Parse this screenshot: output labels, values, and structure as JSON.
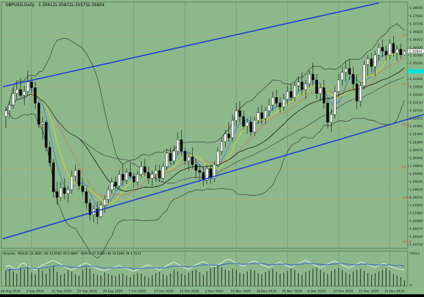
{
  "header": {
    "symbol_label": "GBPUSD,Daily",
    "ohlc": [
      "1.35612",
      "1.35872",
      "1.35575",
      "1.35804"
    ]
  },
  "colors": {
    "background": "#8cb88c",
    "bull_candle": "#ffffff",
    "bear_candle": "#000000",
    "channel_line": "#1a3ad6",
    "fib_line": "#d8a050",
    "bollinger": "#333333",
    "ma_blue": "#3a74d8",
    "ma_yellow": "#e6e600",
    "ma_red": "#e06040",
    "ma_black": "#111111",
    "last_price_marker": "#ffffff",
    "cyan_marker": "#00e5e5",
    "volume_bar": "#111111",
    "admi_white": "#ffffff",
    "admi_blue": "#2a5ad8"
  },
  "chart_data": [
    {
      "type": "candlestick",
      "title": "",
      "x_tick_labels": [
        "26 Aug 2020",
        "3 Sep 2020",
        "11 Sep 2020",
        "21 Sep 2020",
        "29 Sep 2020",
        "7 Oct 2020",
        "15 Oct 2020",
        "23 Oct 2020",
        "2 Nov 2020",
        "10 Nov 2020",
        "18 Nov 2020",
        "26 Nov 2020",
        "4 Dec 2020",
        "14 Dec 2020",
        "22 Dec 2020",
        "31 Dec 2020"
      ],
      "y_tick_labels": [
        "1.38050",
        "1.37640",
        "1.37230",
        "1.36820",
        "1.36410",
        "1.36000",
        "1.35590",
        "1.35180",
        "1.34770",
        "1.34360",
        "1.33950",
        "1.33540",
        "1.33130",
        "1.32720",
        "1.32310",
        "1.31900",
        "1.31490",
        "1.31080",
        "1.30670",
        "1.30260",
        "1.29850",
        "1.29440",
        "1.29030",
        "1.28620",
        "1.28210",
        "1.27800",
        "1.27390",
        "1.26980",
        "1.26570",
        "1.26160",
        "1.25750"
      ],
      "ylim": [
        1.2555,
        1.3835
      ],
      "last_price": "1.35804",
      "fib_levels": [
        {
          "label": "0.0",
          "value": 1.3655
        },
        {
          "label": "23.6",
          "value": 1.34
        },
        {
          "label": "38.2",
          "value": 1.319
        },
        {
          "label": "61.8",
          "value": 1.297
        },
        {
          "label": "100.0",
          "value": 1.281
        },
        {
          "label": "161.8",
          "value": 1.258
        }
      ],
      "channel_upper": [
        [
          0,
          1.3395
        ],
        [
          102,
          1.383
        ]
      ],
      "channel_lower": [
        [
          0,
          1.2605
        ],
        [
          116,
          1.326
        ]
      ],
      "candles": [
        {
          "o": 1.324,
          "h": 1.329,
          "l": 1.318,
          "c": 1.327
        },
        {
          "o": 1.327,
          "h": 1.332,
          "l": 1.323,
          "c": 1.33
        },
        {
          "o": 1.33,
          "h": 1.339,
          "l": 1.328,
          "c": 1.336
        },
        {
          "o": 1.336,
          "h": 1.342,
          "l": 1.333,
          "c": 1.338
        },
        {
          "o": 1.338,
          "h": 1.344,
          "l": 1.334,
          "c": 1.335
        },
        {
          "o": 1.335,
          "h": 1.34,
          "l": 1.33,
          "c": 1.337
        },
        {
          "o": 1.337,
          "h": 1.348,
          "l": 1.335,
          "c": 1.342
        },
        {
          "o": 1.342,
          "h": 1.345,
          "l": 1.336,
          "c": 1.339
        },
        {
          "o": 1.339,
          "h": 1.342,
          "l": 1.328,
          "c": 1.331
        },
        {
          "o": 1.331,
          "h": 1.332,
          "l": 1.318,
          "c": 1.32
        },
        {
          "o": 1.32,
          "h": 1.324,
          "l": 1.312,
          "c": 1.321
        },
        {
          "o": 1.321,
          "h": 1.322,
          "l": 1.306,
          "c": 1.308
        },
        {
          "o": 1.308,
          "h": 1.311,
          "l": 1.298,
          "c": 1.3
        },
        {
          "o": 1.3,
          "h": 1.302,
          "l": 1.282,
          "c": 1.285
        },
        {
          "o": 1.285,
          "h": 1.29,
          "l": 1.278,
          "c": 1.282
        },
        {
          "o": 1.282,
          "h": 1.29,
          "l": 1.28,
          "c": 1.287
        },
        {
          "o": 1.287,
          "h": 1.292,
          "l": 1.281,
          "c": 1.284
        },
        {
          "o": 1.284,
          "h": 1.288,
          "l": 1.279,
          "c": 1.286
        },
        {
          "o": 1.286,
          "h": 1.296,
          "l": 1.284,
          "c": 1.293
        },
        {
          "o": 1.293,
          "h": 1.299,
          "l": 1.29,
          "c": 1.296
        },
        {
          "o": 1.296,
          "h": 1.297,
          "l": 1.286,
          "c": 1.288
        },
        {
          "o": 1.288,
          "h": 1.292,
          "l": 1.283,
          "c": 1.285
        },
        {
          "o": 1.285,
          "h": 1.287,
          "l": 1.276,
          "c": 1.279
        },
        {
          "o": 1.279,
          "h": 1.281,
          "l": 1.27,
          "c": 1.273
        },
        {
          "o": 1.273,
          "h": 1.278,
          "l": 1.269,
          "c": 1.276
        },
        {
          "o": 1.276,
          "h": 1.28,
          "l": 1.268,
          "c": 1.272
        },
        {
          "o": 1.272,
          "h": 1.28,
          "l": 1.271,
          "c": 1.278
        },
        {
          "o": 1.278,
          "h": 1.283,
          "l": 1.274,
          "c": 1.281
        },
        {
          "o": 1.281,
          "h": 1.288,
          "l": 1.279,
          "c": 1.286
        },
        {
          "o": 1.286,
          "h": 1.292,
          "l": 1.284,
          "c": 1.29
        },
        {
          "o": 1.29,
          "h": 1.293,
          "l": 1.286,
          "c": 1.288
        },
        {
          "o": 1.288,
          "h": 1.296,
          "l": 1.287,
          "c": 1.294
        },
        {
          "o": 1.294,
          "h": 1.299,
          "l": 1.288,
          "c": 1.291
        },
        {
          "o": 1.291,
          "h": 1.297,
          "l": 1.289,
          "c": 1.295
        },
        {
          "o": 1.295,
          "h": 1.3,
          "l": 1.292,
          "c": 1.293
        },
        {
          "o": 1.293,
          "h": 1.295,
          "l": 1.287,
          "c": 1.29
        },
        {
          "o": 1.29,
          "h": 1.296,
          "l": 1.288,
          "c": 1.294
        },
        {
          "o": 1.294,
          "h": 1.301,
          "l": 1.292,
          "c": 1.298
        },
        {
          "o": 1.298,
          "h": 1.302,
          "l": 1.293,
          "c": 1.295
        },
        {
          "o": 1.295,
          "h": 1.298,
          "l": 1.289,
          "c": 1.292
        },
        {
          "o": 1.292,
          "h": 1.296,
          "l": 1.288,
          "c": 1.294
        },
        {
          "o": 1.294,
          "h": 1.299,
          "l": 1.29,
          "c": 1.296
        },
        {
          "o": 1.296,
          "h": 1.299,
          "l": 1.29,
          "c": 1.292
        },
        {
          "o": 1.292,
          "h": 1.3,
          "l": 1.291,
          "c": 1.298
        },
        {
          "o": 1.298,
          "h": 1.307,
          "l": 1.296,
          "c": 1.305
        },
        {
          "o": 1.305,
          "h": 1.308,
          "l": 1.299,
          "c": 1.301
        },
        {
          "o": 1.301,
          "h": 1.309,
          "l": 1.299,
          "c": 1.306
        },
        {
          "o": 1.306,
          "h": 1.316,
          "l": 1.304,
          "c": 1.312
        },
        {
          "o": 1.312,
          "h": 1.317,
          "l": 1.304,
          "c": 1.306
        },
        {
          "o": 1.306,
          "h": 1.308,
          "l": 1.299,
          "c": 1.301
        },
        {
          "o": 1.301,
          "h": 1.305,
          "l": 1.296,
          "c": 1.303
        },
        {
          "o": 1.303,
          "h": 1.308,
          "l": 1.297,
          "c": 1.299
        },
        {
          "o": 1.299,
          "h": 1.302,
          "l": 1.292,
          "c": 1.296
        },
        {
          "o": 1.296,
          "h": 1.299,
          "l": 1.29,
          "c": 1.295
        },
        {
          "o": 1.295,
          "h": 1.298,
          "l": 1.288,
          "c": 1.291
        },
        {
          "o": 1.291,
          "h": 1.299,
          "l": 1.289,
          "c": 1.297
        },
        {
          "o": 1.297,
          "h": 1.299,
          "l": 1.289,
          "c": 1.292
        },
        {
          "o": 1.292,
          "h": 1.301,
          "l": 1.29,
          "c": 1.299
        },
        {
          "o": 1.299,
          "h": 1.308,
          "l": 1.298,
          "c": 1.306
        },
        {
          "o": 1.306,
          "h": 1.313,
          "l": 1.304,
          "c": 1.311
        },
        {
          "o": 1.311,
          "h": 1.317,
          "l": 1.308,
          "c": 1.315
        },
        {
          "o": 1.315,
          "h": 1.321,
          "l": 1.311,
          "c": 1.313
        },
        {
          "o": 1.313,
          "h": 1.325,
          "l": 1.311,
          "c": 1.322
        },
        {
          "o": 1.322,
          "h": 1.331,
          "l": 1.319,
          "c": 1.327
        },
        {
          "o": 1.327,
          "h": 1.332,
          "l": 1.321,
          "c": 1.324
        },
        {
          "o": 1.324,
          "h": 1.327,
          "l": 1.317,
          "c": 1.319
        },
        {
          "o": 1.319,
          "h": 1.323,
          "l": 1.315,
          "c": 1.321
        },
        {
          "o": 1.321,
          "h": 1.324,
          "l": 1.314,
          "c": 1.316
        },
        {
          "o": 1.316,
          "h": 1.324,
          "l": 1.314,
          "c": 1.322
        },
        {
          "o": 1.322,
          "h": 1.329,
          "l": 1.32,
          "c": 1.326
        },
        {
          "o": 1.326,
          "h": 1.33,
          "l": 1.32,
          "c": 1.323
        },
        {
          "o": 1.323,
          "h": 1.329,
          "l": 1.32,
          "c": 1.327
        },
        {
          "o": 1.327,
          "h": 1.333,
          "l": 1.324,
          "c": 1.33
        },
        {
          "o": 1.33,
          "h": 1.337,
          "l": 1.327,
          "c": 1.334
        },
        {
          "o": 1.334,
          "h": 1.338,
          "l": 1.329,
          "c": 1.331
        },
        {
          "o": 1.331,
          "h": 1.334,
          "l": 1.326,
          "c": 1.329
        },
        {
          "o": 1.329,
          "h": 1.336,
          "l": 1.327,
          "c": 1.333
        },
        {
          "o": 1.333,
          "h": 1.34,
          "l": 1.33,
          "c": 1.337
        },
        {
          "o": 1.337,
          "h": 1.341,
          "l": 1.332,
          "c": 1.334
        },
        {
          "o": 1.334,
          "h": 1.342,
          "l": 1.332,
          "c": 1.34
        },
        {
          "o": 1.34,
          "h": 1.345,
          "l": 1.337,
          "c": 1.342
        },
        {
          "o": 1.342,
          "h": 1.347,
          "l": 1.335,
          "c": 1.338
        },
        {
          "o": 1.338,
          "h": 1.343,
          "l": 1.333,
          "c": 1.341
        },
        {
          "o": 1.341,
          "h": 1.348,
          "l": 1.339,
          "c": 1.346
        },
        {
          "o": 1.346,
          "h": 1.352,
          "l": 1.34,
          "c": 1.343
        },
        {
          "o": 1.343,
          "h": 1.346,
          "l": 1.333,
          "c": 1.336
        },
        {
          "o": 1.336,
          "h": 1.341,
          "l": 1.332,
          "c": 1.339
        },
        {
          "o": 1.339,
          "h": 1.343,
          "l": 1.328,
          "c": 1.331
        },
        {
          "o": 1.331,
          "h": 1.333,
          "l": 1.318,
          "c": 1.321
        },
        {
          "o": 1.321,
          "h": 1.328,
          "l": 1.316,
          "c": 1.325
        },
        {
          "o": 1.325,
          "h": 1.34,
          "l": 1.323,
          "c": 1.337
        },
        {
          "o": 1.337,
          "h": 1.346,
          "l": 1.334,
          "c": 1.343
        },
        {
          "o": 1.343,
          "h": 1.35,
          "l": 1.34,
          "c": 1.347
        },
        {
          "o": 1.347,
          "h": 1.353,
          "l": 1.342,
          "c": 1.349
        },
        {
          "o": 1.349,
          "h": 1.354,
          "l": 1.343,
          "c": 1.346
        },
        {
          "o": 1.346,
          "h": 1.35,
          "l": 1.338,
          "c": 1.341
        },
        {
          "o": 1.341,
          "h": 1.346,
          "l": 1.328,
          "c": 1.332
        },
        {
          "o": 1.332,
          "h": 1.342,
          "l": 1.329,
          "c": 1.34
        },
        {
          "o": 1.34,
          "h": 1.353,
          "l": 1.338,
          "c": 1.351
        },
        {
          "o": 1.351,
          "h": 1.356,
          "l": 1.345,
          "c": 1.354
        },
        {
          "o": 1.354,
          "h": 1.357,
          "l": 1.347,
          "c": 1.35
        },
        {
          "o": 1.35,
          "h": 1.358,
          "l": 1.345,
          "c": 1.356
        },
        {
          "o": 1.356,
          "h": 1.362,
          "l": 1.353,
          "c": 1.36
        },
        {
          "o": 1.36,
          "h": 1.364,
          "l": 1.355,
          "c": 1.358
        },
        {
          "o": 1.358,
          "h": 1.361,
          "l": 1.353,
          "c": 1.356
        },
        {
          "o": 1.356,
          "h": 1.364,
          "l": 1.354,
          "c": 1.362
        },
        {
          "o": 1.362,
          "h": 1.366,
          "l": 1.355,
          "c": 1.357
        },
        {
          "o": 1.357,
          "h": 1.361,
          "l": 1.353,
          "c": 1.359
        },
        {
          "o": 1.359,
          "h": 1.362,
          "l": 1.354,
          "c": 1.3561
        },
        {
          "o": 1.3561,
          "h": 1.3587,
          "l": 1.3558,
          "c": 1.358
        }
      ]
    },
    {
      "type": "bar",
      "title": "",
      "indicator_label": "Volumes",
      "indicator_values": [
        "ADX(8) 24.3845",
        "+DI 14.9583",
        "-DI 6.8867",
        "ADX(3) 37.2398",
        "+DI 19.6284",
        "-DI 4.7233"
      ],
      "y_tick_labels": [
        "79053",
        "0"
      ],
      "ylim": [
        0,
        79053
      ],
      "values": [
        38000,
        42000,
        36000,
        30000,
        45000,
        40000,
        52000,
        33000,
        28000,
        41000,
        37000,
        30000,
        44000,
        48000,
        35000,
        27000,
        31000,
        40000,
        36000,
        29000,
        25000,
        38000,
        46000,
        42000,
        30000,
        28000,
        26000,
        34000,
        30000,
        27000,
        24000,
        29000,
        31000,
        26000,
        22000,
        28000,
        33000,
        30000,
        25000,
        21000,
        27000,
        32000,
        35000,
        29000,
        26000,
        31000,
        40000,
        36000,
        30000,
        27000,
        33000,
        38000,
        41000,
        34000,
        28000,
        36000,
        44000,
        48000,
        52000,
        46000,
        40000,
        37000,
        43000,
        39000,
        33000,
        30000,
        36000,
        41000,
        38000,
        31000,
        29000,
        34000,
        39000,
        42000,
        35000,
        30000,
        33000,
        37000,
        44000,
        40000,
        32000,
        28000,
        35000,
        38000,
        42000,
        46000,
        40000,
        34000,
        30000,
        37000,
        41000,
        45000,
        39000,
        33000,
        29000,
        36000,
        40000,
        43000,
        38000,
        32000,
        28000,
        31000,
        36000,
        40000,
        44000,
        38000,
        30000,
        26000,
        22000,
        14000
      ],
      "admi_white": [
        30,
        32,
        28,
        26,
        34,
        36,
        31,
        28,
        25,
        29,
        33,
        35,
        38,
        40,
        37,
        34,
        30,
        27,
        25,
        28,
        31,
        34,
        36,
        33,
        30,
        27,
        25,
        24,
        26,
        28,
        30,
        32,
        29,
        27,
        25,
        23,
        26,
        28,
        31,
        33,
        30,
        27,
        25,
        28,
        32,
        35,
        37,
        34,
        31,
        28,
        26,
        29,
        33,
        36,
        38,
        35,
        32,
        30,
        33,
        36,
        40,
        42,
        39,
        36,
        33,
        31,
        34,
        37,
        39,
        36,
        33,
        31,
        29,
        32,
        35,
        37,
        34,
        31,
        29,
        32,
        35,
        38,
        40,
        37,
        34,
        31,
        28,
        31,
        34,
        37,
        39,
        36,
        33,
        30,
        28,
        31,
        34,
        37,
        36,
        33,
        31,
        29,
        32,
        35,
        34,
        31,
        29,
        27,
        26,
        25
      ],
      "admi_blue": [
        24,
        25,
        26,
        26,
        27,
        28,
        28,
        28,
        27,
        27,
        28,
        29,
        30,
        31,
        32,
        32,
        31,
        30,
        29,
        29,
        29,
        30,
        31,
        31,
        31,
        30,
        29,
        28,
        28,
        28,
        28,
        29,
        29,
        28,
        28,
        27,
        27,
        27,
        28,
        28,
        29,
        28,
        28,
        28,
        29,
        30,
        31,
        31,
        31,
        30,
        30,
        30,
        31,
        32,
        33,
        33,
        33,
        32,
        32,
        33,
        34,
        35,
        35,
        35,
        34,
        34,
        34,
        35,
        35,
        35,
        35,
        34,
        33,
        33,
        34,
        34,
        34,
        34,
        33,
        33,
        34,
        34,
        35,
        35,
        35,
        34,
        34,
        33,
        33,
        34,
        34,
        35,
        35,
        34,
        34,
        33,
        33,
        34,
        34,
        34,
        33,
        33,
        33,
        33,
        33,
        33,
        32,
        32,
        32,
        31
      ]
    }
  ]
}
